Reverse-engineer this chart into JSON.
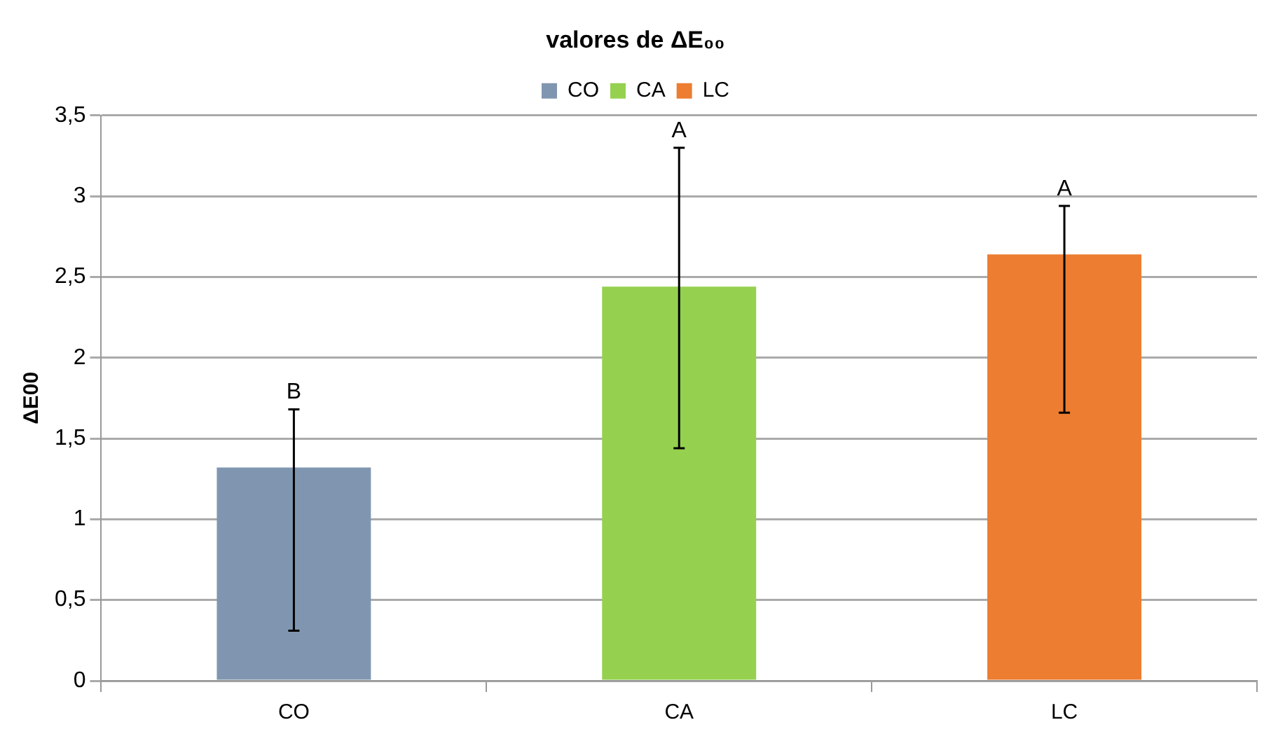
{
  "chart_data": {
    "type": "bar",
    "title": "valores de ΔE₀₀",
    "ylabel": "ΔE00",
    "categories": [
      "CO",
      "CA",
      "LC"
    ],
    "series": [
      {
        "name": "CO",
        "color": "#8096b0",
        "values": [
          1.32,
          null,
          null
        ],
        "errors": [
          [
            0.31,
            1.68
          ],
          null,
          null
        ]
      },
      {
        "name": "CA",
        "color": "#95d14f",
        "values": [
          null,
          2.44,
          null
        ],
        "errors": [
          null,
          [
            1.44,
            3.3
          ],
          null
        ]
      },
      {
        "name": "LC",
        "color": "#ed7d31",
        "values": [
          null,
          null,
          2.64
        ],
        "errors": [
          null,
          null,
          [
            1.66,
            2.94
          ]
        ]
      }
    ],
    "ylim": [
      0,
      3.5
    ],
    "yticks": [
      0,
      {
        "value": 0.5,
        "label": "0,5"
      },
      1,
      {
        "value": 1.5,
        "label": "1,5"
      },
      2,
      {
        "value": 2.5,
        "label": "2,5"
      },
      3,
      {
        "value": 3.5,
        "label": "3,5"
      }
    ],
    "grid": "y",
    "legend": "top",
    "annotations": [
      "B",
      "A",
      "A"
    ]
  }
}
